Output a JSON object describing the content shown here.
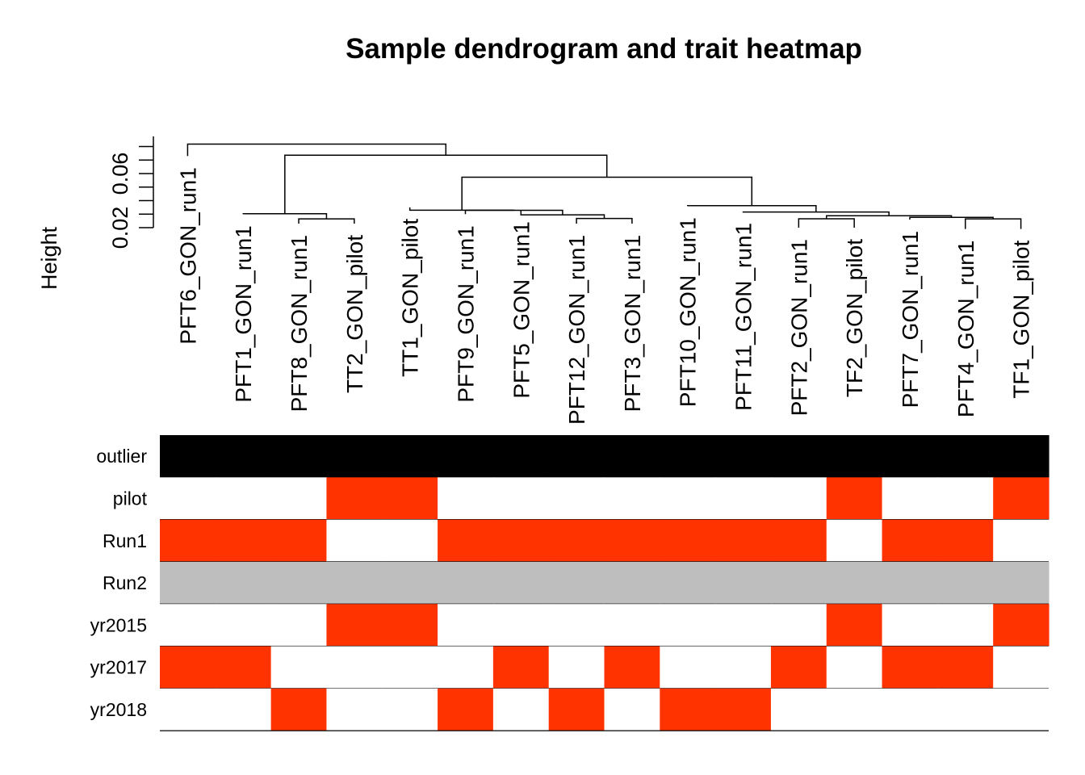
{
  "chart_data": {
    "type": "heatmap",
    "title": "Sample dendrogram and trait heatmap",
    "ylabel": "Height",
    "yticks": [
      "0.02",
      "0.06"
    ],
    "samples": [
      "PFT6_GON_run1",
      "PFT1_GON_run1",
      "PFT8_GON_run1",
      "TT2_GON_pilot",
      "TT1_GON_pilot",
      "PFT9_GON_run1",
      "PFT5_GON_run1",
      "PFT12_GON_run1",
      "PFT3_GON_run1",
      "PFT10_GON_run1",
      "PFT11_GON_run1",
      "PFT2_GON_run1",
      "TF2_GON_pilot",
      "PFT7_GON_run1",
      "PFT4_GON_run1",
      "TF1_GON_pilot"
    ],
    "leaf_heights": [
      0.073,
      0.03,
      0.023,
      0.023,
      0.035,
      0.03,
      0.033,
      0.023,
      0.023,
      0.036,
      0.032,
      0.02,
      0.02,
      0.026,
      0.019,
      0.019
    ],
    "merges": [
      {
        "a": [
          "s",
          2
        ],
        "b": [
          "s",
          3
        ],
        "height": 0.0265
      },
      {
        "a": [
          "s",
          1
        ],
        "b": [
          "n",
          0
        ],
        "height": 0.0303
      },
      {
        "a": [
          "s",
          7
        ],
        "b": [
          "s",
          8
        ],
        "height": 0.0268
      },
      {
        "a": [
          "s",
          6
        ],
        "b": [
          "n",
          2
        ],
        "height": 0.0295
      },
      {
        "a": [
          "s",
          5
        ],
        "b": [
          "n",
          3
        ],
        "height": 0.0328
      },
      {
        "a": [
          "s",
          4
        ],
        "b": [
          "n",
          4
        ],
        "height": 0.0329
      },
      {
        "a": [
          "s",
          11
        ],
        "b": [
          "s",
          12
        ],
        "height": 0.0266
      },
      {
        "a": [
          "s",
          14
        ],
        "b": [
          "s",
          15
        ],
        "height": 0.0265
      },
      {
        "a": [
          "s",
          13
        ],
        "b": [
          "n",
          7
        ],
        "height": 0.0276
      },
      {
        "a": [
          "n",
          6
        ],
        "b": [
          "n",
          8
        ],
        "height": 0.0288
      },
      {
        "a": [
          "s",
          10
        ],
        "b": [
          "n",
          9
        ],
        "height": 0.0316
      },
      {
        "a": [
          "s",
          9
        ],
        "b": [
          "n",
          10
        ],
        "height": 0.0363
      },
      {
        "a": [
          "n",
          5
        ],
        "b": [
          "n",
          11
        ],
        "height": 0.0573
      },
      {
        "a": [
          "n",
          1
        ],
        "b": [
          "n",
          12
        ],
        "height": 0.0736
      },
      {
        "a": [
          "s",
          0
        ],
        "b": [
          "n",
          13
        ],
        "height": 0.0818
      }
    ],
    "traits": [
      "outlier",
      "pilot",
      "Run1",
      "Run2",
      "yr2015",
      "yr2017",
      "yr2018"
    ],
    "trait_values": {
      "outlier": [
        1,
        1,
        1,
        1,
        1,
        1,
        1,
        1,
        1,
        1,
        1,
        1,
        1,
        1,
        1,
        1
      ],
      "pilot": [
        0,
        0,
        0,
        1,
        1,
        0,
        0,
        0,
        0,
        0,
        0,
        0,
        1,
        0,
        0,
        1
      ],
      "Run1": [
        1,
        1,
        1,
        0,
        0,
        1,
        1,
        1,
        1,
        1,
        1,
        1,
        0,
        1,
        1,
        0
      ],
      "Run2": [
        0,
        0,
        0,
        0,
        0,
        0,
        0,
        0,
        0,
        0,
        0,
        0,
        0,
        0,
        0,
        0
      ],
      "yr2015": [
        0,
        0,
        0,
        1,
        1,
        0,
        0,
        0,
        0,
        0,
        0,
        0,
        1,
        0,
        0,
        1
      ],
      "yr2017": [
        1,
        1,
        0,
        0,
        0,
        0,
        1,
        0,
        1,
        0,
        0,
        1,
        0,
        1,
        1,
        0
      ],
      "yr2018": [
        0,
        0,
        1,
        0,
        0,
        1,
        0,
        1,
        0,
        1,
        1,
        0,
        0,
        0,
        0,
        0
      ]
    },
    "trait_colors": {
      "outlier": [
        "#ffffff",
        "#000000"
      ],
      "pilot": [
        "#ffffff",
        "#ff3300"
      ],
      "Run1": [
        "#ffffff",
        "#ff3300"
      ],
      "Run2": [
        "#bebebe",
        "#bebebe"
      ],
      "yr2015": [
        "#ffffff",
        "#ff3300"
      ],
      "yr2017": [
        "#ffffff",
        "#ff3300"
      ],
      "yr2018": [
        "#ffffff",
        "#ff3300"
      ]
    },
    "yticks_values": [
      0.02,
      0.06
    ],
    "ylim": [
      0.015,
      0.085
    ]
  }
}
